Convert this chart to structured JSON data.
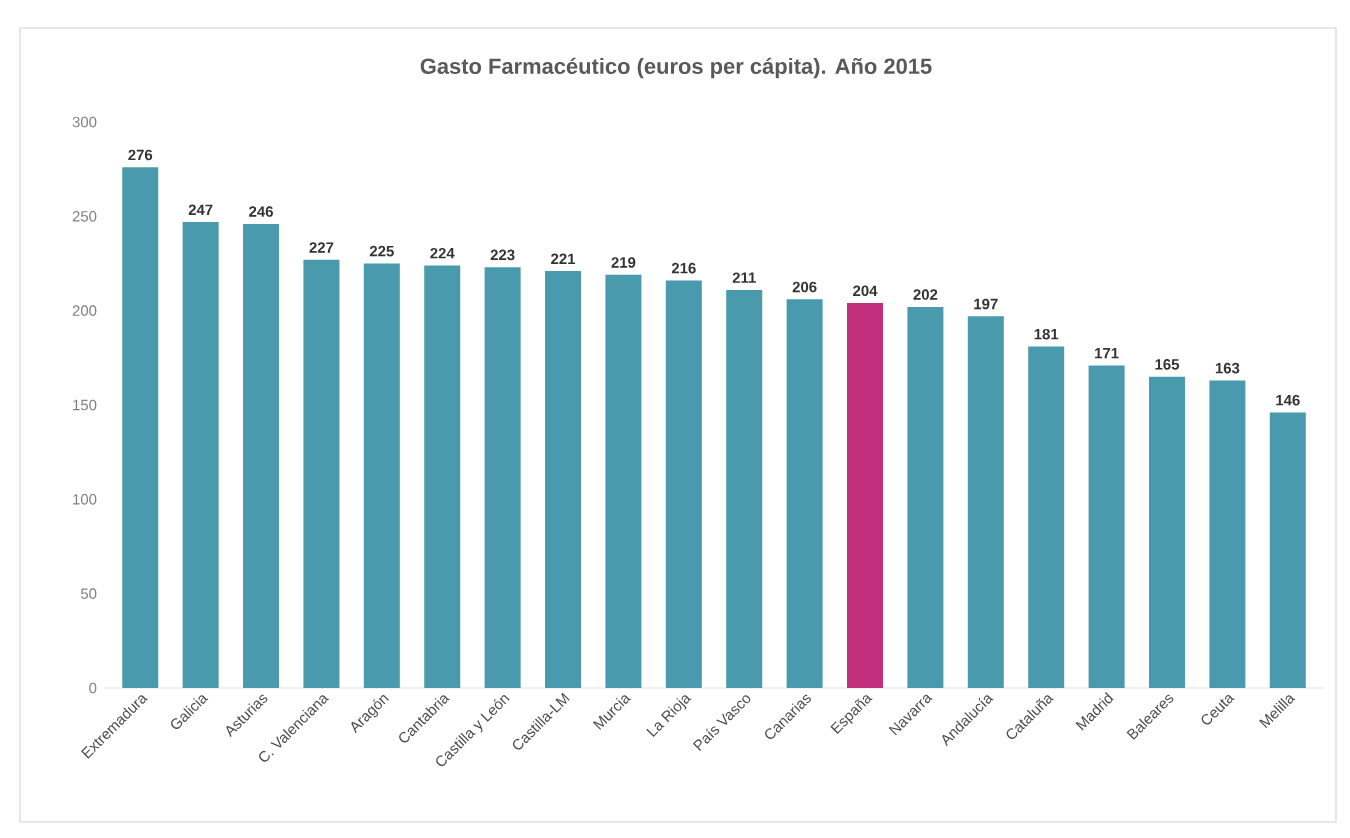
{
  "chart_data": {
    "type": "bar",
    "title": "Gasto Farmacéutico (euros per cápita).  Año 2015",
    "categories": [
      "Extremadura",
      "Galicia",
      "Asturias",
      "C. Valenciana",
      "Aragón",
      "Cantabria",
      "Castilla y León",
      "Castilla-LM",
      "Murcia",
      "La Rioja",
      "País Vasco",
      "Canarias",
      "España",
      "Navarra",
      "Andalucía",
      "Cataluña",
      "Madrid",
      "Baleares",
      "Ceuta",
      "Melilla"
    ],
    "values": [
      276,
      247,
      246,
      227,
      225,
      224,
      223,
      221,
      219,
      216,
      211,
      206,
      204,
      202,
      197,
      181,
      171,
      165,
      163,
      146
    ],
    "colors": [
      "#4a9aad",
      "#4a9aad",
      "#4a9aad",
      "#4a9aad",
      "#4a9aad",
      "#4a9aad",
      "#4a9aad",
      "#4a9aad",
      "#4a9aad",
      "#4a9aad",
      "#4a9aad",
      "#4a9aad",
      "#c2307c",
      "#4a9aad",
      "#4a9aad",
      "#4a9aad",
      "#4a9aad",
      "#4a9aad",
      "#4a9aad",
      "#4a9aad"
    ],
    "ylim": [
      0,
      300
    ],
    "yticks": [
      0,
      50,
      100,
      150,
      200,
      250,
      300
    ],
    "data_labels": true
  }
}
